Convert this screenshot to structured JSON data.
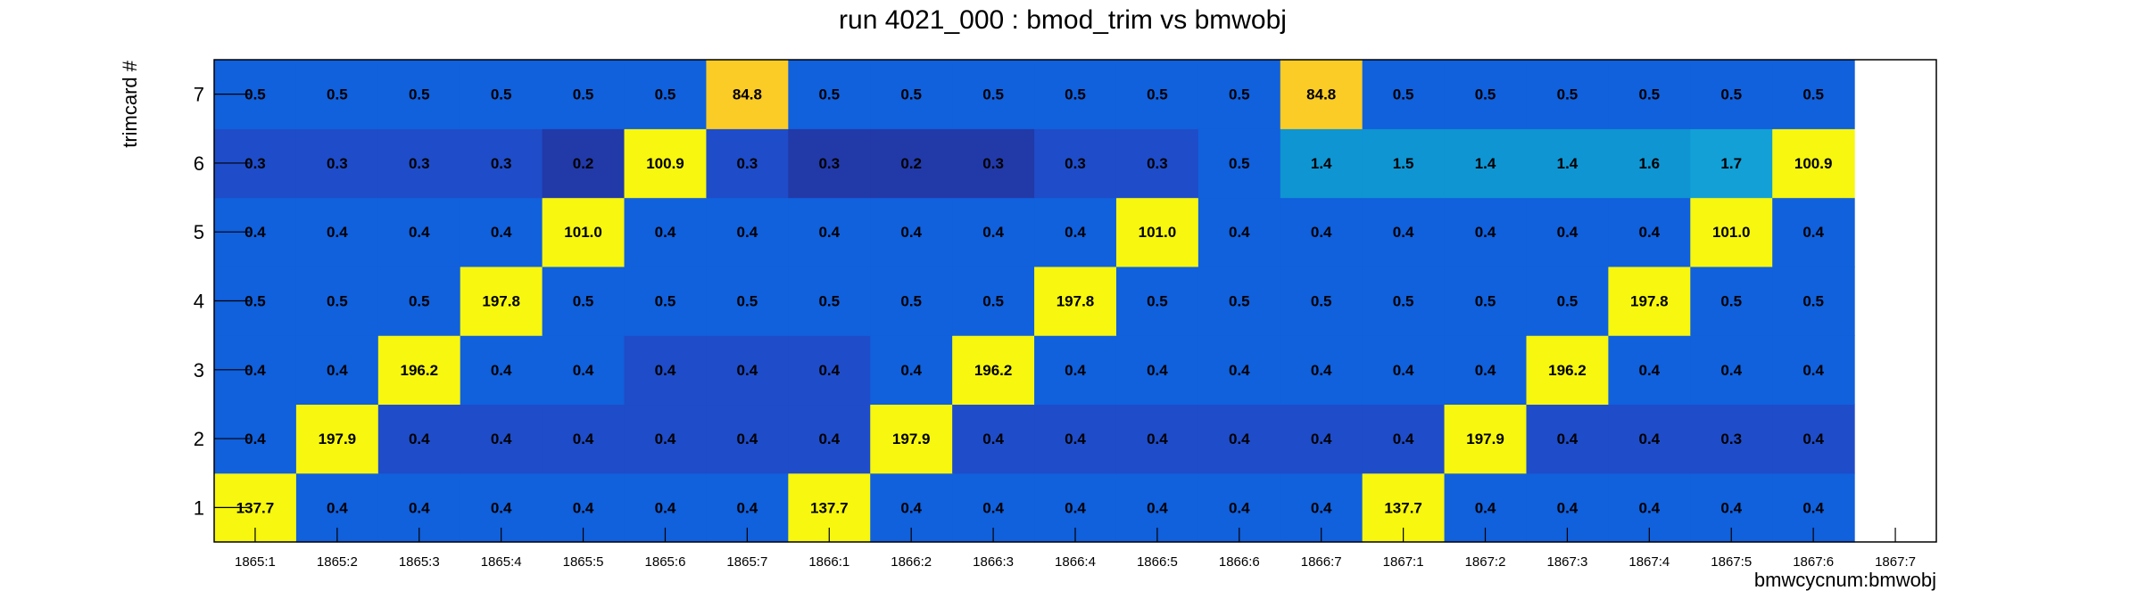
{
  "chart_data": {
    "type": "heatmap",
    "title": "run 4021_000 : bmod_trim vs bmwobj",
    "xlabel": "bmwcycnum:bmwobj",
    "ylabel": "trimcard #",
    "x_categories": [
      "1865:1",
      "1865:2",
      "1865:3",
      "1865:4",
      "1865:5",
      "1865:6",
      "1865:7",
      "1866:1",
      "1866:2",
      "1866:3",
      "1866:4",
      "1866:5",
      "1866:6",
      "1866:7",
      "1867:1",
      "1867:2",
      "1867:3",
      "1867:4",
      "1867:5",
      "1867:6",
      "1867:7"
    ],
    "y_categories": [
      "1",
      "2",
      "3",
      "4",
      "5",
      "6",
      "7"
    ],
    "values": [
      [
        "137.7",
        "0.4",
        "0.4",
        "0.4",
        "0.4",
        "0.4",
        "0.4",
        "137.7",
        "0.4",
        "0.4",
        "0.4",
        "0.4",
        "0.4",
        "0.4",
        "137.7",
        "0.4",
        "0.4",
        "0.4",
        "0.4",
        "0.4",
        null
      ],
      [
        "0.4",
        "197.9",
        "0.4",
        "0.4",
        "0.4",
        "0.4",
        "0.4",
        "0.4",
        "197.9",
        "0.4",
        "0.4",
        "0.4",
        "0.4",
        "0.4",
        "0.4",
        "197.9",
        "0.4",
        "0.4",
        "0.3",
        "0.4",
        null
      ],
      [
        "0.4",
        "0.4",
        "196.2",
        "0.4",
        "0.4",
        "0.4",
        "0.4",
        "0.4",
        "0.4",
        "196.2",
        "0.4",
        "0.4",
        "0.4",
        "0.4",
        "0.4",
        "0.4",
        "196.2",
        "0.4",
        "0.4",
        "0.4",
        null
      ],
      [
        "0.5",
        "0.5",
        "0.5",
        "197.8",
        "0.5",
        "0.5",
        "0.5",
        "0.5",
        "0.5",
        "0.5",
        "197.8",
        "0.5",
        "0.5",
        "0.5",
        "0.5",
        "0.5",
        "0.5",
        "197.8",
        "0.5",
        "0.5",
        null
      ],
      [
        "0.4",
        "0.4",
        "0.4",
        "0.4",
        "101.0",
        "0.4",
        "0.4",
        "0.4",
        "0.4",
        "0.4",
        "0.4",
        "101.0",
        "0.4",
        "0.4",
        "0.4",
        "0.4",
        "0.4",
        "0.4",
        "101.0",
        "0.4",
        null
      ],
      [
        "0.3",
        "0.3",
        "0.3",
        "0.3",
        "0.2",
        "100.9",
        "0.3",
        "0.3",
        "0.2",
        "0.3",
        "0.3",
        "0.3",
        "0.5",
        "1.4",
        "1.5",
        "1.4",
        "1.4",
        "1.6",
        "1.7",
        "100.9",
        null
      ],
      [
        "0.5",
        "0.5",
        "0.5",
        "0.5",
        "0.5",
        "0.5",
        "84.8",
        "0.5",
        "0.5",
        "0.5",
        "0.5",
        "0.5",
        "0.5",
        "84.8",
        "0.5",
        "0.5",
        "0.5",
        "0.5",
        "0.5",
        "0.5",
        null
      ]
    ],
    "colors": {
      "low_dark": "#2239a8",
      "low_mid": "#1f4cc8",
      "low": "#1160dc",
      "cyan": "#0f95d2",
      "cyan_bright": "#12a0d6",
      "mid_high": "#fbcc26",
      "high": "#f7f70f"
    },
    "grid": false,
    "legend": "none"
  }
}
